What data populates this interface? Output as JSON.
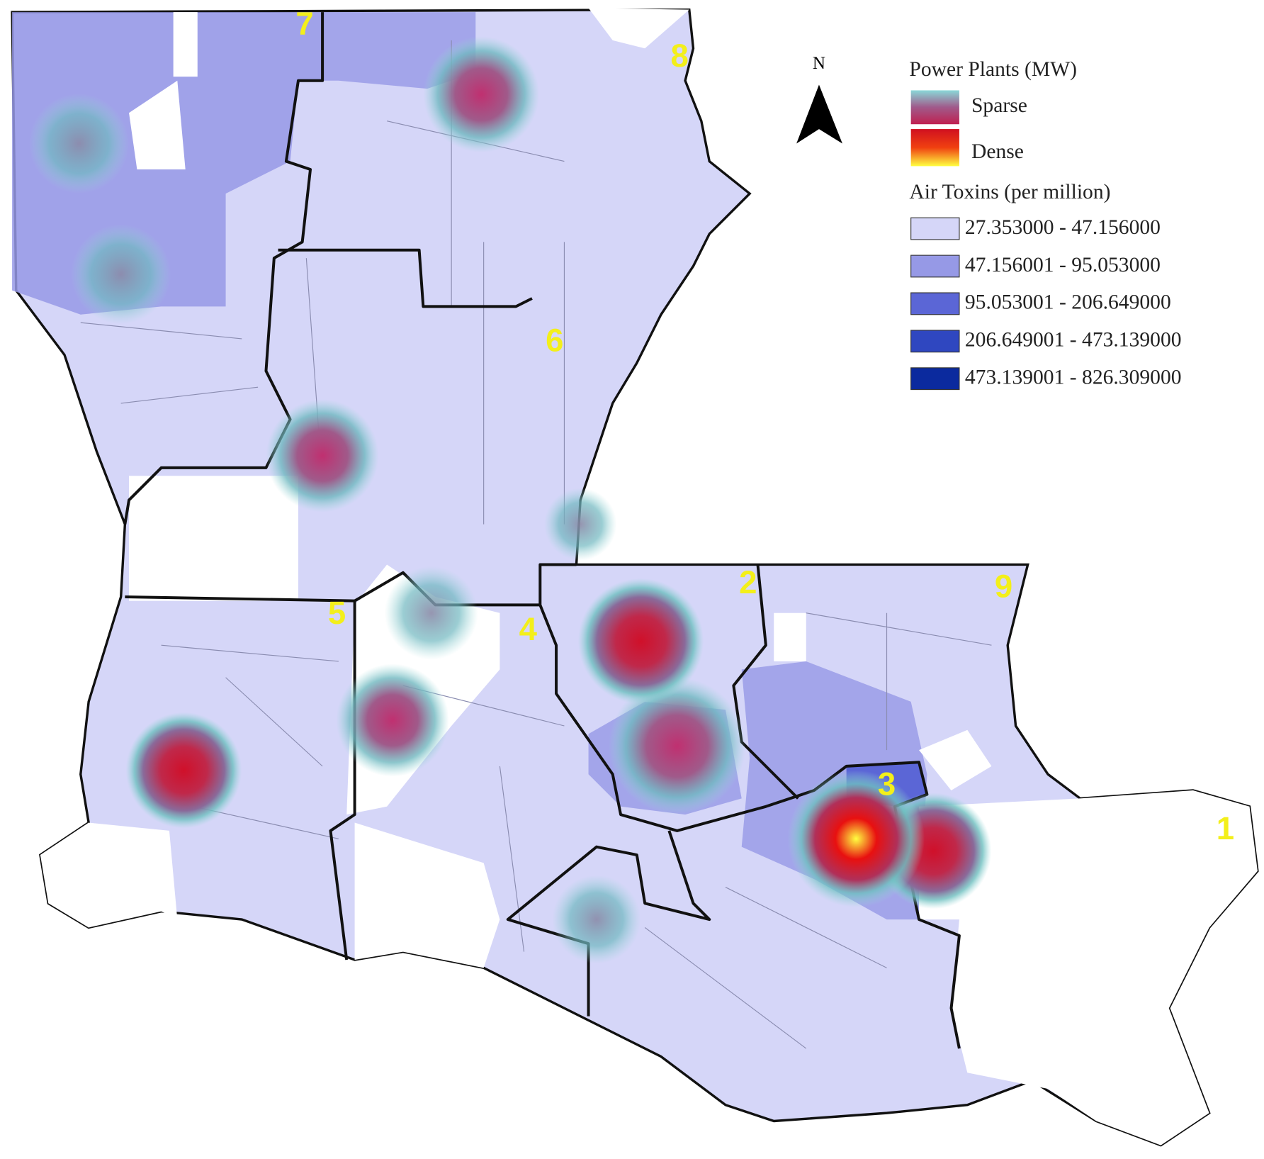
{
  "legend": {
    "power_plants_title": "Power Plants (MW)",
    "power_plants_items": [
      "Sparse",
      "Dense"
    ],
    "air_toxins_title": "Air Toxins (per million)",
    "air_toxins_classes": [
      {
        "label": "27.353000 - 47.156000",
        "color": "#d5d6f8"
      },
      {
        "label": "47.156001 - 95.053000",
        "color": "#9699e6"
      },
      {
        "label": "95.053001 - 206.649000",
        "color": "#5b66d6"
      },
      {
        "label": "206.649001 - 473.139000",
        "color": "#2f47c0"
      },
      {
        "label": "473.139001 - 826.309000",
        "color": "#0b2a9e"
      }
    ]
  },
  "north_arrow": {
    "label": "N"
  },
  "regions": [
    "1",
    "2",
    "3",
    "4",
    "5",
    "6",
    "7",
    "8",
    "9"
  ]
}
